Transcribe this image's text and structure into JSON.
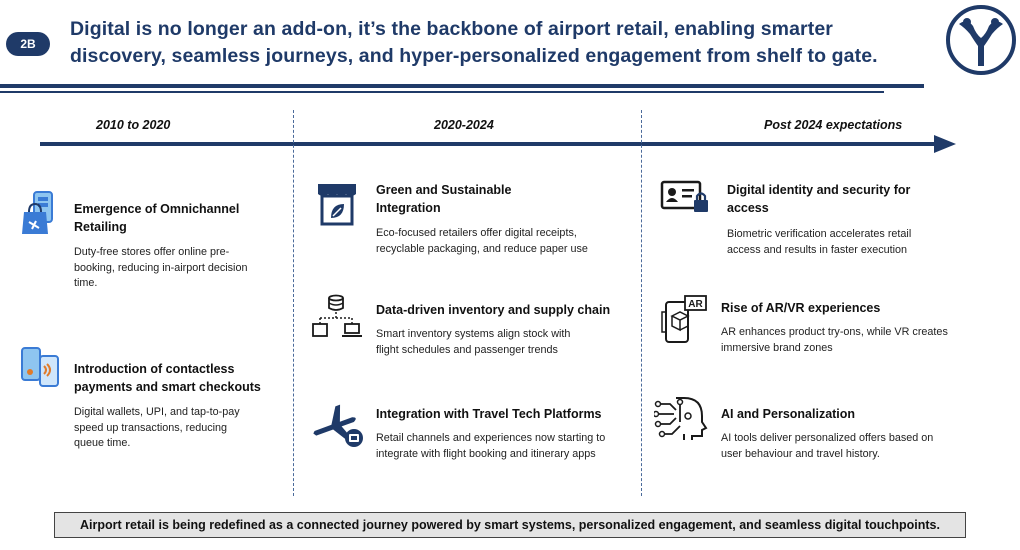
{
  "header": {
    "badge": "2B",
    "headline_line1": "Digital is no longer an add-on, it’s the backbone of airport retail, enabling smarter",
    "headline_line2": "discovery, seamless journeys, and hyper-personalized engagement from shelf to gate."
  },
  "timeline": {
    "periods": [
      "2010 to 2020",
      "2020-2024",
      "Post 2024 expectations"
    ]
  },
  "columns": [
    {
      "items": [
        {
          "icon": "omnichannel-shopping-icon",
          "title_line1": "Emergence of Omnichannel",
          "title_line2": "Retailing",
          "desc_line1": "Duty-free stores offer online pre-",
          "desc_line2": "booking, reducing in-airport decision",
          "desc_line3": "time."
        },
        {
          "icon": "contactless-payment-icon",
          "title_line1": "Introduction of contactless",
          "title_line2": "payments and smart checkouts",
          "desc_line1": "Digital wallets, UPI, and tap-to-pay",
          "desc_line2": "speed up transactions, reducing",
          "desc_line3": "queue time."
        }
      ]
    },
    {
      "items": [
        {
          "icon": "eco-store-icon",
          "title_line1": "Green and Sustainable",
          "title_line2": "Integration",
          "desc_line1": "Eco-focused retailers offer digital receipts,",
          "desc_line2": "recyclable packaging, and reduce paper use"
        },
        {
          "icon": "data-network-icon",
          "title_line1": "Data-driven inventory and supply chain",
          "desc_line1": "Smart inventory systems align stock with",
          "desc_line2": "flight schedules and passenger trends"
        },
        {
          "icon": "travel-tech-icon",
          "title_line1": "Integration with Travel Tech Platforms",
          "desc_line1": "Retail channels and experiences now starting to",
          "desc_line2": "integrate with flight booking and itinerary apps"
        }
      ]
    },
    {
      "items": [
        {
          "icon": "digital-id-lock-icon",
          "title_line1": "Digital identity and security for",
          "title_line2": "access",
          "desc_line1": "Biometric verification accelerates retail",
          "desc_line2": "access and results in faster execution"
        },
        {
          "icon": "ar-phone-icon",
          "icon_text": "AR",
          "title_line1": "Rise of AR/VR experiences",
          "desc_line1": "AR enhances product try-ons, while VR creates",
          "desc_line2": "immersive brand zones"
        },
        {
          "icon": "ai-head-icon",
          "title_line1": "AI and Personalization",
          "desc_line1": "AI tools deliver personalized offers based on",
          "desc_line2": "user behaviour and travel history."
        }
      ]
    }
  ],
  "summary": "Airport retail is being redefined as a connected journey powered by smart systems, personalized engagement, and seamless digital touchpoints.",
  "colors": {
    "navy": "#1f3a68",
    "accent_blue": "#3a7bd5",
    "light_blue": "#8ec5f0"
  }
}
